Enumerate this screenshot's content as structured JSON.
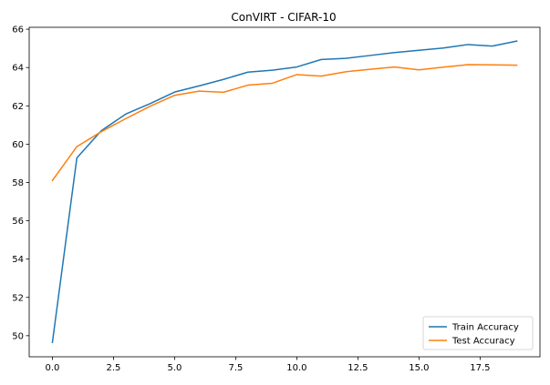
{
  "chart_data": {
    "type": "line",
    "title": "ConVIRT - CIFAR-10",
    "xlabel": "",
    "ylabel": "",
    "xlim": [
      -0.95,
      19.95
    ],
    "ylim": [
      48.9,
      66.1
    ],
    "x_ticks": [
      0.0,
      2.5,
      5.0,
      7.5,
      10.0,
      12.5,
      15.0,
      17.5
    ],
    "x_tick_labels": [
      "0.0",
      "2.5",
      "5.0",
      "7.5",
      "10.0",
      "12.5",
      "15.0",
      "17.5"
    ],
    "y_ticks": [
      50,
      52,
      54,
      56,
      58,
      60,
      62,
      64,
      66
    ],
    "y_tick_labels": [
      "50",
      "52",
      "54",
      "56",
      "58",
      "60",
      "62",
      "64",
      "66"
    ],
    "grid": false,
    "legend_position": "bottom-right",
    "x": [
      0,
      1,
      2,
      3,
      4,
      5,
      6,
      7,
      8,
      9,
      10,
      11,
      12,
      13,
      14,
      15,
      16,
      17,
      18,
      19
    ],
    "series": [
      {
        "name": "Train Accuracy",
        "color": "#1f77b4",
        "values": [
          49.65,
          59.28,
          60.7,
          61.57,
          62.12,
          62.72,
          63.04,
          63.38,
          63.76,
          63.86,
          64.03,
          64.42,
          64.48,
          64.63,
          64.78,
          64.9,
          65.02,
          65.2,
          65.12,
          65.38
        ]
      },
      {
        "name": "Test Accuracy",
        "color": "#ff7f0e",
        "values": [
          58.1,
          59.87,
          60.65,
          61.33,
          61.98,
          62.55,
          62.77,
          62.71,
          63.08,
          63.18,
          63.63,
          63.55,
          63.78,
          63.91,
          64.03,
          63.88,
          64.02,
          64.15,
          64.14,
          64.12
        ]
      }
    ]
  }
}
